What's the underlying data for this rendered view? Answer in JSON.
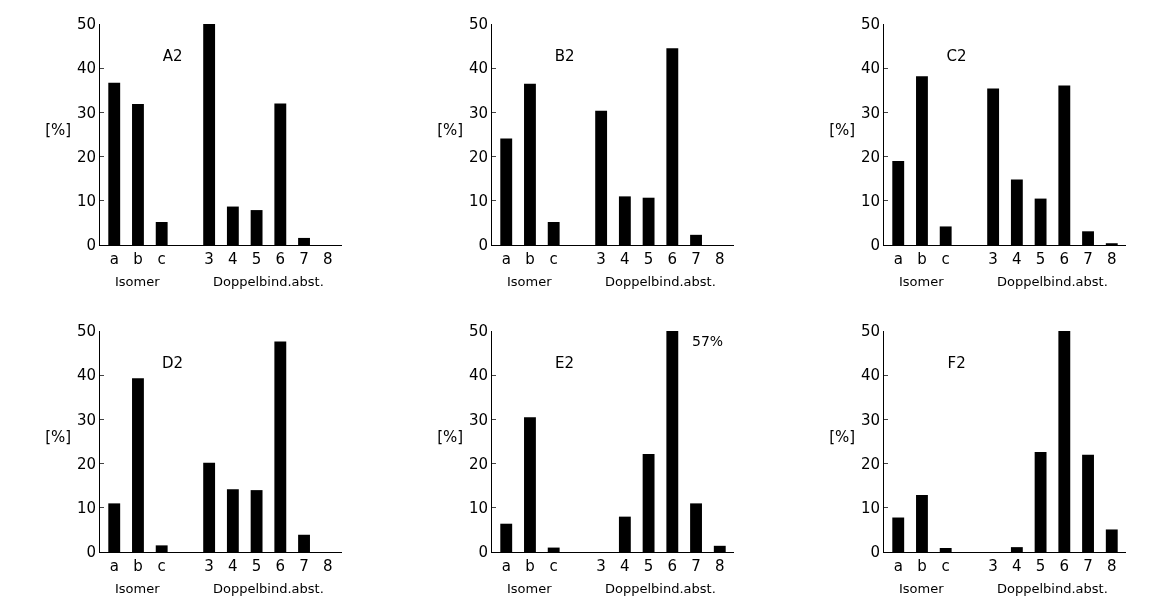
{
  "chart_data": [
    {
      "type": "bar",
      "title": "A2",
      "ylabel": "[%]",
      "categories": [
        "a",
        "b",
        "c",
        null,
        "3",
        "4",
        "5",
        "6",
        "7",
        "8"
      ],
      "values": [
        36.7,
        31.9,
        5.2,
        null,
        50,
        8.7,
        7.9,
        32,
        1.6,
        0
      ],
      "color": "#000000",
      "ylim": [
        0,
        50
      ],
      "yticks": [
        0,
        10,
        20,
        30,
        40,
        50
      ],
      "grid": false,
      "annotations": [
        "Isomer",
        "Doppelbind.abst."
      ]
    },
    {
      "type": "bar",
      "title": "B2",
      "ylabel": "[%]",
      "categories": [
        "a",
        "b",
        "c",
        null,
        "3",
        "4",
        "5",
        "6",
        "7",
        "8"
      ],
      "values": [
        24.1,
        36.5,
        5.2,
        null,
        30.4,
        11,
        10.7,
        44.5,
        2.3,
        0
      ],
      "color": "#000000",
      "ylim": [
        0,
        50
      ],
      "yticks": [
        0,
        10,
        20,
        30,
        40,
        50
      ],
      "grid": false,
      "annotations": [
        "Isomer",
        "Doppelbind.abst."
      ]
    },
    {
      "type": "bar",
      "title": "C2",
      "ylabel": "[%]",
      "categories": [
        "a",
        "b",
        "c",
        null,
        "3",
        "4",
        "5",
        "6",
        "7",
        "8"
      ],
      "values": [
        19,
        38.2,
        4.2,
        null,
        35.4,
        14.8,
        10.5,
        36.1,
        3.1,
        0.4
      ],
      "color": "#000000",
      "ylim": [
        0,
        50
      ],
      "yticks": [
        0,
        10,
        20,
        30,
        40,
        50
      ],
      "grid": false,
      "annotations": [
        "Isomer",
        "Doppelbind.abst."
      ]
    },
    {
      "type": "bar",
      "title": "D2",
      "ylabel": "[%]",
      "categories": [
        "a",
        "b",
        "c",
        null,
        "3",
        "4",
        "5",
        "6",
        "7",
        "8"
      ],
      "values": [
        11,
        39.3,
        1.5,
        null,
        20.2,
        14.2,
        14,
        47.6,
        3.9,
        0
      ],
      "color": "#000000",
      "ylim": [
        0,
        50
      ],
      "yticks": [
        0,
        10,
        20,
        30,
        40,
        50
      ],
      "grid": false,
      "annotations": [
        "Isomer",
        "Doppelbind.abst."
      ]
    },
    {
      "type": "bar",
      "title": "E2",
      "ylabel": "[%]",
      "categories": [
        "a",
        "b",
        "c",
        null,
        "3",
        "4",
        "5",
        "6",
        "7",
        "8"
      ],
      "values": [
        6.4,
        30.5,
        1,
        null,
        0,
        8,
        22.2,
        50,
        11,
        1.4
      ],
      "color": "#000000",
      "ylim": [
        0,
        50
      ],
      "yticks": [
        0,
        10,
        20,
        30,
        40,
        50
      ],
      "grid": false,
      "annotations": [
        "Isomer",
        "Doppelbind.abst.",
        {
          "text": "57%",
          "x": "6",
          "y": 50
        }
      ]
    },
    {
      "type": "bar",
      "title": "F2",
      "ylabel": "[%]",
      "categories": [
        "a",
        "b",
        "c",
        null,
        "3",
        "4",
        "5",
        "6",
        "7",
        "8"
      ],
      "values": [
        7.8,
        12.9,
        0.9,
        null,
        0,
        1.1,
        22.6,
        50,
        22,
        5.1
      ],
      "color": "#000000",
      "ylim": [
        0,
        50
      ],
      "yticks": [
        0,
        10,
        20,
        30,
        40,
        50
      ],
      "grid": false,
      "annotations": [
        "Isomer",
        "Doppelbind.abst."
      ]
    }
  ]
}
